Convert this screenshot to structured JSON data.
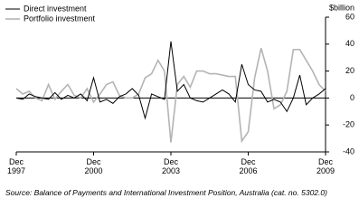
{
  "chart_data": {
    "type": "line",
    "unit_label": "$billion",
    "source": "Source: Balance of Payments and International Investment Position, Australia (cat. no. 5302.0)",
    "categories": [
      "Dec 1997",
      null,
      null,
      null,
      null,
      null,
      null,
      null,
      null,
      null,
      null,
      null,
      "Dec 2000",
      null,
      null,
      null,
      null,
      null,
      null,
      null,
      null,
      null,
      null,
      null,
      "Dec 2003",
      null,
      null,
      null,
      null,
      null,
      null,
      null,
      null,
      null,
      null,
      null,
      "Dec 2006",
      null,
      null,
      null,
      null,
      null,
      null,
      null,
      null,
      null,
      null,
      null,
      "Dec 2009"
    ],
    "series": [
      {
        "name": "Direct investment",
        "color": "#000000",
        "values": [
          0,
          -1,
          3,
          1,
          0,
          -1,
          4,
          -1,
          2,
          0,
          3,
          -2,
          15,
          -3,
          -1,
          -4,
          1,
          3,
          7,
          2,
          -15,
          3,
          1,
          -1,
          42,
          5,
          10,
          0,
          -2,
          -3,
          0,
          3,
          6,
          3,
          -3,
          25,
          10,
          6,
          5,
          -3,
          -1,
          -3,
          -10,
          0,
          17,
          -5,
          0,
          3,
          7
        ]
      },
      {
        "name": "Portfolio investment",
        "color": "#b4b4b4",
        "values": [
          7,
          3,
          5,
          0,
          -2,
          10,
          -1,
          5,
          10,
          2,
          0,
          7,
          -3,
          3,
          10,
          12,
          2,
          0,
          0,
          3,
          15,
          18,
          28,
          20,
          -33,
          10,
          16,
          8,
          20,
          20,
          18,
          18,
          17,
          16,
          16,
          -32,
          -25,
          15,
          37,
          20,
          -8,
          -5,
          5,
          36,
          36,
          28,
          20,
          10,
          5
        ]
      }
    ],
    "ylim": [
      -40,
      60
    ],
    "yticks": [
      -40,
      -20,
      0,
      20,
      40,
      60
    ]
  }
}
